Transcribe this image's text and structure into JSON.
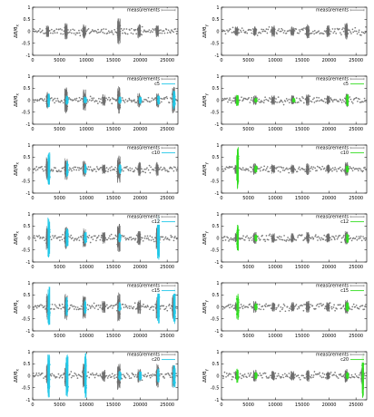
{
  "chart_data": [
    {
      "type": "scatter",
      "panel": "left-1",
      "ylabel_main": "Δθ/θ",
      "ylabel_sub": "x",
      "legend_label": "measurements",
      "series_label": "",
      "highlight_color": null,
      "x_ticks": [
        0,
        5000,
        10000,
        15000,
        20000,
        25000
      ],
      "y_ticks": [
        -1,
        -0.5,
        0,
        0.5,
        1
      ],
      "xlim": [
        0,
        27000
      ],
      "ylim": [
        -1,
        1
      ],
      "grid": false,
      "legend_position": "top-right",
      "peaks": [
        {
          "x": 2800,
          "amp": 0.25
        },
        {
          "x": 6200,
          "amp": 0.35
        },
        {
          "x": 9600,
          "amp": 0.3
        },
        {
          "x": 16000,
          "amp": 0.55
        },
        {
          "x": 19800,
          "amp": 0.3
        },
        {
          "x": 23200,
          "amp": 0.25
        }
      ],
      "highlight_peaks": []
    },
    {
      "type": "scatter",
      "panel": "right-1",
      "ylabel_main": "Δθ/θ",
      "ylabel_sub": "y",
      "legend_label": "measurements",
      "series_label": "",
      "highlight_color": null,
      "x_ticks": [
        0,
        5000,
        10000,
        15000,
        20000,
        25000
      ],
      "y_ticks": [
        -1,
        -0.5,
        0,
        0.5,
        1
      ],
      "xlim": [
        0,
        27000
      ],
      "ylim": [
        -1,
        1
      ],
      "grid": false,
      "legend_position": "top-right",
      "peaks": [
        {
          "x": 2800,
          "amp": 0.2
        },
        {
          "x": 6200,
          "amp": 0.2
        },
        {
          "x": 9600,
          "amp": 0.25
        },
        {
          "x": 13200,
          "amp": 0.2
        },
        {
          "x": 16000,
          "amp": 0.3
        },
        {
          "x": 19800,
          "amp": 0.25
        },
        {
          "x": 23200,
          "amp": 0.35
        }
      ],
      "highlight_peaks": []
    },
    {
      "type": "scatter",
      "panel": "left-2",
      "ylabel_main": "Δθ/θ",
      "ylabel_sub": "x",
      "legend_label": "measurements",
      "series_label": "c5",
      "highlight_color": "#22c8e8",
      "x_ticks": [
        0,
        5000,
        10000,
        15000,
        20000,
        25000
      ],
      "y_ticks": [
        -1,
        -0.5,
        0,
        0.5,
        1
      ],
      "xlim": [
        0,
        27000
      ],
      "ylim": [
        -1,
        1
      ],
      "grid": false,
      "legend_position": "top-right",
      "peaks": [
        {
          "x": 2800,
          "amp": 0.35
        },
        {
          "x": 6200,
          "amp": 0.55
        },
        {
          "x": 9600,
          "amp": 0.45
        },
        {
          "x": 13200,
          "amp": 0.25
        },
        {
          "x": 16000,
          "amp": 0.6
        },
        {
          "x": 19800,
          "amp": 0.3
        },
        {
          "x": 23200,
          "amp": 0.3
        },
        {
          "x": 26200,
          "amp": 0.6
        }
      ],
      "highlight_peaks": [
        {
          "x": 3000,
          "amp": 0.3
        },
        {
          "x": 6400,
          "amp": 0.2
        },
        {
          "x": 9800,
          "amp": 0.15
        },
        {
          "x": 16200,
          "amp": 0.15
        },
        {
          "x": 20000,
          "amp": 0.15
        },
        {
          "x": 23400,
          "amp": 0.2
        },
        {
          "x": 26300,
          "amp": 0.4
        }
      ]
    },
    {
      "type": "scatter",
      "panel": "right-2",
      "ylabel_main": "Δθ/θ",
      "ylabel_sub": "y",
      "legend_label": "measurements",
      "series_label": "c5",
      "highlight_color": "#33dd22",
      "x_ticks": [
        0,
        5000,
        10000,
        15000,
        20000,
        25000
      ],
      "y_ticks": [
        -1,
        -0.5,
        0,
        0.5,
        1
      ],
      "xlim": [
        0,
        27000
      ],
      "ylim": [
        -1,
        1
      ],
      "grid": false,
      "legend_position": "top-right",
      "peaks": [
        {
          "x": 2800,
          "amp": 0.2
        },
        {
          "x": 6200,
          "amp": 0.2
        },
        {
          "x": 9600,
          "amp": 0.2
        },
        {
          "x": 13200,
          "amp": 0.2
        },
        {
          "x": 16000,
          "amp": 0.25
        },
        {
          "x": 19800,
          "amp": 0.2
        },
        {
          "x": 23200,
          "amp": 0.3
        }
      ],
      "highlight_peaks": [
        {
          "x": 3000,
          "amp": 0.25
        },
        {
          "x": 6400,
          "amp": 0.1
        },
        {
          "x": 13400,
          "amp": 0.1
        },
        {
          "x": 23400,
          "amp": 0.25
        }
      ]
    },
    {
      "type": "scatter",
      "panel": "left-3",
      "ylabel_main": "Δθ/θ",
      "ylabel_sub": "x",
      "legend_label": "measurements",
      "series_label": "c10",
      "highlight_color": "#22c8e8",
      "x_ticks": [
        0,
        5000,
        10000,
        15000,
        20000,
        25000
      ],
      "y_ticks": [
        -1,
        -0.5,
        0,
        0.5,
        1
      ],
      "xlim": [
        0,
        27000
      ],
      "ylim": [
        -1,
        1
      ],
      "grid": false,
      "legend_position": "top-right",
      "peaks": [
        {
          "x": 2800,
          "amp": 0.5
        },
        {
          "x": 6200,
          "amp": 0.45
        },
        {
          "x": 9600,
          "amp": 0.35
        },
        {
          "x": 13200,
          "amp": 0.2
        },
        {
          "x": 16000,
          "amp": 0.6
        },
        {
          "x": 19800,
          "amp": 0.3
        },
        {
          "x": 23200,
          "amp": 0.3
        }
      ],
      "highlight_peaks": [
        {
          "x": 3000,
          "amp": 0.75
        },
        {
          "x": 6400,
          "amp": 0.35
        },
        {
          "x": 9800,
          "amp": 0.2
        },
        {
          "x": 16200,
          "amp": 0.2
        }
      ]
    },
    {
      "type": "scatter",
      "panel": "right-3",
      "ylabel_main": "Δθ/θ",
      "ylabel_sub": "y",
      "legend_label": "measurements",
      "series_label": "c10",
      "highlight_color": "#33dd22",
      "x_ticks": [
        0,
        5000,
        10000,
        15000,
        20000,
        25000
      ],
      "y_ticks": [
        -1,
        -0.5,
        0,
        0.5,
        1
      ],
      "xlim": [
        0,
        27000
      ],
      "ylim": [
        -1,
        1
      ],
      "grid": false,
      "legend_position": "top-right",
      "peaks": [
        {
          "x": 2800,
          "amp": 0.2
        },
        {
          "x": 6200,
          "amp": 0.25
        },
        {
          "x": 9600,
          "amp": 0.2
        },
        {
          "x": 13200,
          "amp": 0.2
        },
        {
          "x": 16000,
          "amp": 0.25
        },
        {
          "x": 19800,
          "amp": 0.2
        },
        {
          "x": 23200,
          "amp": 0.3
        }
      ],
      "highlight_peaks": [
        {
          "x": 3000,
          "amp": 0.95
        },
        {
          "x": 6400,
          "amp": 0.15
        },
        {
          "x": 23400,
          "amp": 0.15
        }
      ]
    },
    {
      "type": "scatter",
      "panel": "left-4",
      "ylabel_main": "Δθ/θ",
      "ylabel_sub": "x",
      "legend_label": "measurements",
      "series_label": "c12",
      "highlight_color": "#22c8e8",
      "x_ticks": [
        0,
        5000,
        10000,
        15000,
        20000,
        25000
      ],
      "y_ticks": [
        -1,
        -0.5,
        0,
        0.5,
        1
      ],
      "xlim": [
        0,
        27000
      ],
      "ylim": [
        -1,
        1
      ],
      "grid": false,
      "legend_position": "top-right",
      "peaks": [
        {
          "x": 2800,
          "amp": 0.5
        },
        {
          "x": 6200,
          "amp": 0.5
        },
        {
          "x": 9600,
          "amp": 0.4
        },
        {
          "x": 13200,
          "amp": 0.25
        },
        {
          "x": 16000,
          "amp": 0.6
        },
        {
          "x": 19800,
          "amp": 0.3
        },
        {
          "x": 23200,
          "amp": 0.5
        }
      ],
      "highlight_peaks": [
        {
          "x": 3000,
          "amp": 0.85
        },
        {
          "x": 6400,
          "amp": 0.4
        },
        {
          "x": 9800,
          "amp": 0.25
        },
        {
          "x": 16200,
          "amp": 0.2
        },
        {
          "x": 23400,
          "amp": 0.95
        }
      ]
    },
    {
      "type": "scatter",
      "panel": "right-4",
      "ylabel_main": "Δθ/θ",
      "ylabel_sub": "y",
      "legend_label": "measurements",
      "series_label": "c12",
      "highlight_color": "#33dd22",
      "x_ticks": [
        0,
        5000,
        10000,
        15000,
        20000,
        25000
      ],
      "y_ticks": [
        -1,
        -0.5,
        0,
        0.5,
        1
      ],
      "xlim": [
        0,
        27000
      ],
      "ylim": [
        -1,
        1
      ],
      "grid": false,
      "legend_position": "top-right",
      "peaks": [
        {
          "x": 2800,
          "amp": 0.2
        },
        {
          "x": 6200,
          "amp": 0.25
        },
        {
          "x": 9600,
          "amp": 0.2
        },
        {
          "x": 13200,
          "amp": 0.2
        },
        {
          "x": 16000,
          "amp": 0.25
        },
        {
          "x": 19800,
          "amp": 0.2
        },
        {
          "x": 23200,
          "amp": 0.3
        }
      ],
      "highlight_peaks": [
        {
          "x": 3000,
          "amp": 0.55
        },
        {
          "x": 6400,
          "amp": 0.15
        },
        {
          "x": 23400,
          "amp": 0.2
        }
      ]
    },
    {
      "type": "scatter",
      "panel": "left-5",
      "ylabel_main": "Δθ/θ",
      "ylabel_sub": "x",
      "legend_label": "measurements",
      "series_label": "c15",
      "highlight_color": "#22c8e8",
      "x_ticks": [
        0,
        5000,
        10000,
        15000,
        20000,
        25000
      ],
      "y_ticks": [
        -1,
        -0.5,
        0,
        0.5,
        1
      ],
      "xlim": [
        0,
        27000
      ],
      "ylim": [
        -1,
        1
      ],
      "grid": false,
      "legend_position": "top-right",
      "peaks": [
        {
          "x": 2800,
          "amp": 0.55
        },
        {
          "x": 6200,
          "amp": 0.55
        },
        {
          "x": 9600,
          "amp": 0.5
        },
        {
          "x": 13200,
          "amp": 0.25
        },
        {
          "x": 16000,
          "amp": 0.6
        },
        {
          "x": 19800,
          "amp": 0.3
        },
        {
          "x": 23200,
          "amp": 0.5
        },
        {
          "x": 26200,
          "amp": 0.5
        }
      ],
      "highlight_peaks": [
        {
          "x": 3000,
          "amp": 0.85
        },
        {
          "x": 6400,
          "amp": 0.4
        },
        {
          "x": 9800,
          "amp": 0.3
        },
        {
          "x": 16200,
          "amp": 0.2
        },
        {
          "x": 23400,
          "amp": 0.7
        },
        {
          "x": 26300,
          "amp": 0.8
        }
      ]
    },
    {
      "type": "scatter",
      "panel": "right-5",
      "ylabel_main": "Δθ/θ",
      "ylabel_sub": "y",
      "legend_label": "measurements",
      "series_label": "c15",
      "highlight_color": "#33dd22",
      "x_ticks": [
        0,
        5000,
        10000,
        15000,
        20000,
        25000
      ],
      "y_ticks": [
        -1,
        -0.5,
        0,
        0.5,
        1
      ],
      "xlim": [
        0,
        27000
      ],
      "ylim": [
        -1,
        1
      ],
      "grid": false,
      "legend_position": "top-right",
      "peaks": [
        {
          "x": 2800,
          "amp": 0.2
        },
        {
          "x": 6200,
          "amp": 0.25
        },
        {
          "x": 9600,
          "amp": 0.2
        },
        {
          "x": 13200,
          "amp": 0.2
        },
        {
          "x": 16000,
          "amp": 0.25
        },
        {
          "x": 19800,
          "amp": 0.2
        },
        {
          "x": 23200,
          "amp": 0.3
        }
      ],
      "highlight_peaks": [
        {
          "x": 3000,
          "amp": 0.55
        },
        {
          "x": 6400,
          "amp": 0.15
        },
        {
          "x": 23400,
          "amp": 0.2
        }
      ]
    },
    {
      "type": "scatter",
      "panel": "left-6",
      "ylabel_main": "Δθ/θ",
      "ylabel_sub": "x",
      "legend_label": "measurements",
      "series_label": "c20",
      "highlight_color": "#22c8e8",
      "x_ticks": [
        0,
        5000,
        10000,
        15000,
        20000,
        25000
      ],
      "y_ticks": [
        -1,
        -0.5,
        0,
        0.5,
        1
      ],
      "xlim": [
        0,
        27000
      ],
      "ylim": [
        -1,
        1
      ],
      "grid": false,
      "legend_position": "top-right",
      "peaks": [
        {
          "x": 2800,
          "amp": 0.55
        },
        {
          "x": 6200,
          "amp": 0.55
        },
        {
          "x": 9600,
          "amp": 0.5
        },
        {
          "x": 13200,
          "amp": 0.25
        },
        {
          "x": 16000,
          "amp": 0.6
        },
        {
          "x": 19800,
          "amp": 0.3
        },
        {
          "x": 23200,
          "amp": 0.5
        },
        {
          "x": 26200,
          "amp": 0.5
        }
      ],
      "highlight_peaks": [
        {
          "x": 3000,
          "amp": 0.95
        },
        {
          "x": 6400,
          "amp": 0.9
        },
        {
          "x": 9800,
          "amp": 0.95
        },
        {
          "x": 16200,
          "amp": 0.2
        },
        {
          "x": 20000,
          "amp": 0.2
        },
        {
          "x": 23400,
          "amp": 0.3
        },
        {
          "x": 26300,
          "amp": 0.5
        }
      ]
    },
    {
      "type": "scatter",
      "panel": "right-6",
      "ylabel_main": "Δθ/θ",
      "ylabel_sub": "y",
      "legend_label": "measurements",
      "series_label": "c20",
      "highlight_color": "#33dd22",
      "x_ticks": [
        0,
        5000,
        10000,
        15000,
        20000,
        25000
      ],
      "y_ticks": [
        -1,
        -0.5,
        0,
        0.5,
        1
      ],
      "xlim": [
        0,
        27000
      ],
      "ylim": [
        -1,
        1
      ],
      "grid": false,
      "legend_position": "top-right",
      "peaks": [
        {
          "x": 2800,
          "amp": 0.2
        },
        {
          "x": 6200,
          "amp": 0.25
        },
        {
          "x": 9600,
          "amp": 0.2
        },
        {
          "x": 13200,
          "amp": 0.2
        },
        {
          "x": 16000,
          "amp": 0.25
        },
        {
          "x": 19800,
          "amp": 0.2
        },
        {
          "x": 23200,
          "amp": 0.3
        },
        {
          "x": 26200,
          "amp": 0.35
        }
      ],
      "highlight_peaks": [
        {
          "x": 3000,
          "amp": 0.3
        },
        {
          "x": 6400,
          "amp": 0.15
        },
        {
          "x": 23400,
          "amp": 0.15
        },
        {
          "x": 26300,
          "amp": 0.95
        }
      ]
    }
  ]
}
